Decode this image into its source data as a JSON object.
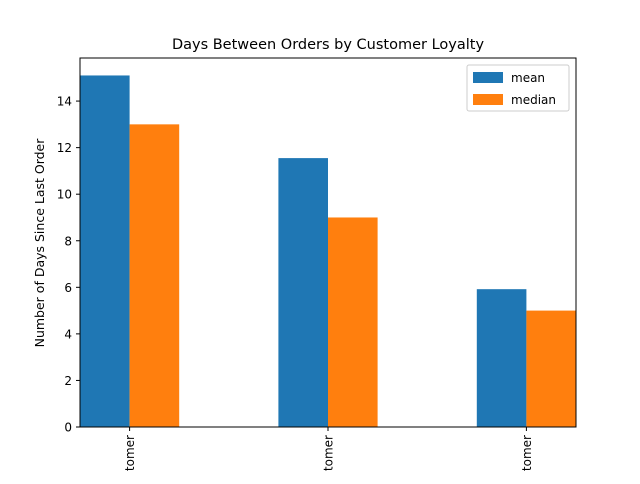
{
  "chart_data": {
    "type": "bar",
    "title": "Days Between Orders by Customer Loyalty",
    "xlabel": "",
    "ylabel": "Number of Days Since Last Order",
    "categories": [
      "tomer",
      "tomer",
      "tomer"
    ],
    "series": [
      {
        "name": "mean",
        "values": [
          15.1,
          11.55,
          5.92
        ],
        "color": "#1f77b4"
      },
      {
        "name": "median",
        "values": [
          13.0,
          9.0,
          5.0
        ],
        "color": "#ff7f0e"
      }
    ],
    "ylim": [
      0,
      15.85
    ],
    "yticks": [
      0,
      2,
      4,
      6,
      8,
      10,
      12,
      14
    ],
    "grid": false,
    "legend_position": "top-right"
  }
}
